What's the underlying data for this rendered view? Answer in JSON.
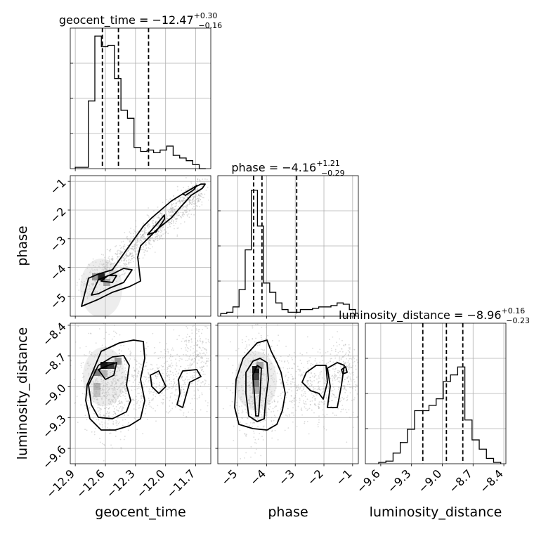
{
  "chart_data": {
    "type": "corner",
    "parameters": [
      "geocent_time",
      "phase",
      "luminosity_distance"
    ],
    "titles": [
      {
        "param": "geocent_time",
        "prefix": "geocent_time = ",
        "value": "−12.47",
        "upper": "+0.30",
        "lower": "−0.16"
      },
      {
        "param": "phase",
        "prefix": "phase = ",
        "value": "−4.16",
        "upper": "+1.21",
        "lower": "−0.29"
      },
      {
        "param": "luminosity_distance",
        "prefix": "luminosity_distance = ",
        "value": "−8.96",
        "upper": "+0.16",
        "lower": "−0.23"
      }
    ],
    "axis_labels": {
      "geocent_time": "geocent_time",
      "phase": "phase",
      "luminosity_distance": "luminosity_distance"
    },
    "ranges": {
      "geocent_time": [
        -12.95,
        -11.55
      ],
      "phase": [
        -5.7,
        -0.8
      ],
      "luminosity_distance": [
        -9.75,
        -8.38
      ]
    },
    "ticks": {
      "geocent_time": {
        "values": [
          -12.9,
          -12.6,
          -12.3,
          -12.0,
          -11.7
        ],
        "labels": [
          "−12.9",
          "−12.6",
          "−12.3",
          "−12.0",
          "−11.7"
        ]
      },
      "phase": {
        "values": [
          -5,
          -4,
          -3,
          -2,
          -1
        ],
        "labels": [
          "−5",
          "−4",
          "−3",
          "−2",
          "−1"
        ]
      },
      "luminosity_distance": {
        "values": [
          -9.6,
          -9.3,
          -9.0,
          -8.7,
          -8.4
        ],
        "labels": [
          "−9.6",
          "−9.3",
          "−9.0",
          "−8.7",
          "−8.4"
        ]
      }
    },
    "quantiles": {
      "geocent_time": [
        -12.63,
        -12.47,
        -12.17
      ],
      "phase": [
        -4.45,
        -4.16,
        -2.95
      ],
      "luminosity_distance": [
        -9.19,
        -8.96,
        -8.8
      ]
    },
    "histograms": {
      "geocent_time": {
        "range": [
          -12.9,
          -11.6
        ],
        "counts": [
          0.01,
          0.01,
          0.51,
          1.0,
          0.92,
          0.93,
          0.68,
          0.44,
          0.38,
          0.16,
          0.13,
          0.14,
          0.12,
          0.14,
          0.17,
          0.1,
          0.08,
          0.06,
          0.03,
          0.0
        ]
      },
      "phase": {
        "range": [
          -5.6,
          -0.9
        ],
        "counts": [
          0.02,
          0.03,
          0.07,
          0.2,
          0.5,
          0.95,
          0.68,
          0.25,
          0.18,
          0.1,
          0.05,
          0.03,
          0.03,
          0.05,
          0.05,
          0.06,
          0.07,
          0.07,
          0.08,
          0.1,
          0.09,
          0.05
        ]
      },
      "luminosity_distance": {
        "range": [
          -9.62,
          -8.43
        ],
        "counts": [
          0.01,
          0.02,
          0.08,
          0.16,
          0.26,
          0.4,
          0.4,
          0.44,
          0.49,
          0.62,
          0.67,
          0.73,
          0.33,
          0.18,
          0.11,
          0.04,
          0.01
        ]
      }
    },
    "hist_ylim": [
      0,
      1.06
    ],
    "grid": true,
    "legend": "none",
    "colors": {
      "line": "#000000",
      "grid": "#b0b0b0",
      "points": "#9a9a9a"
    }
  }
}
